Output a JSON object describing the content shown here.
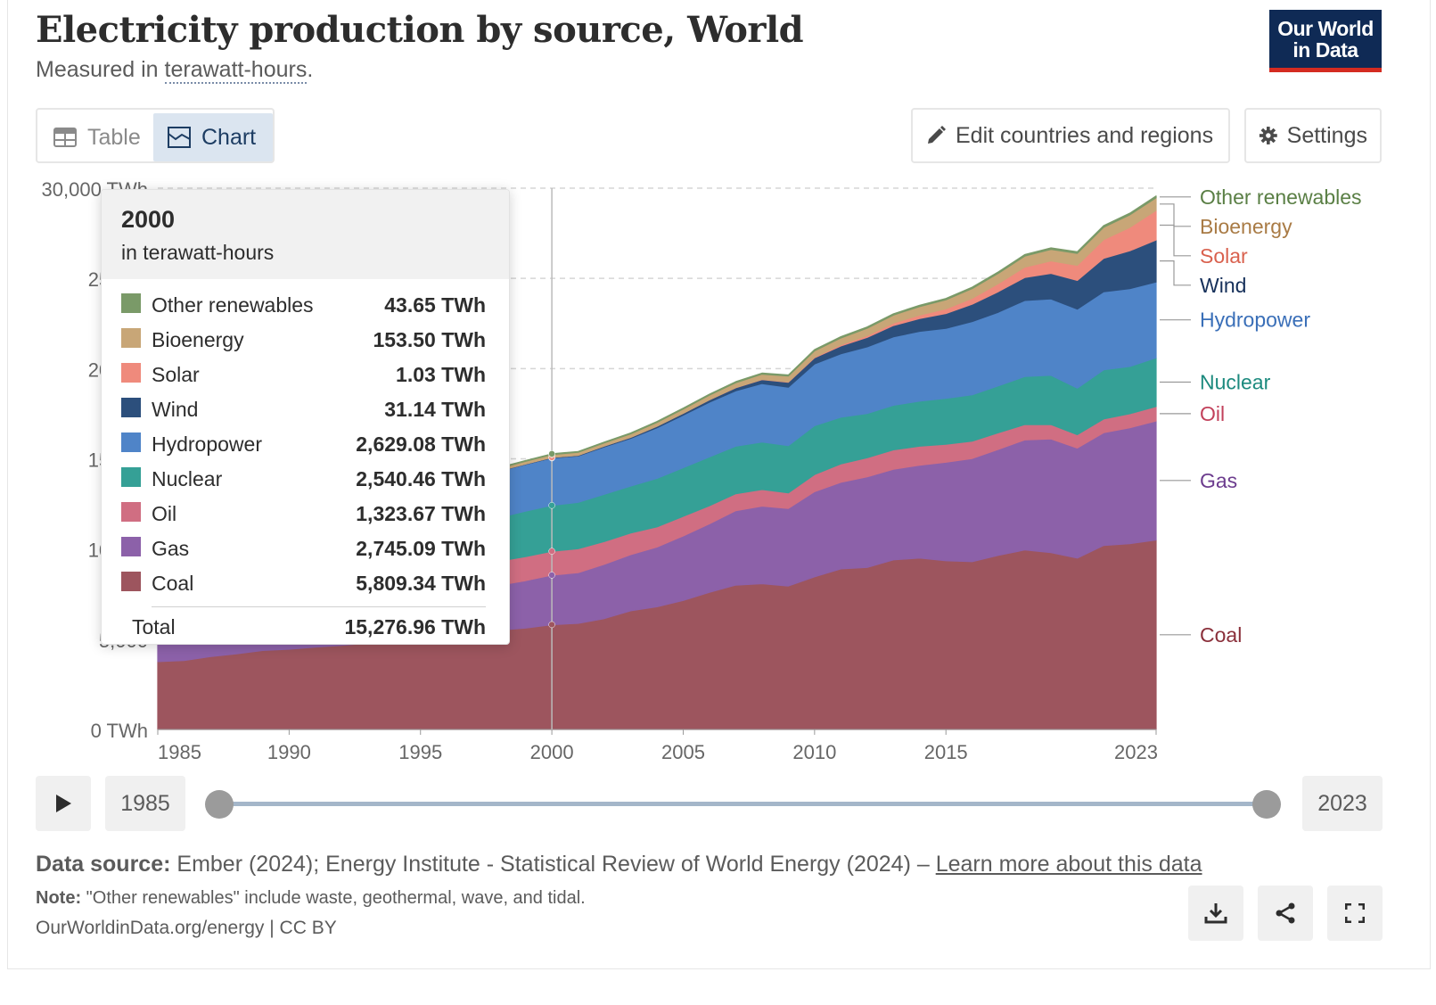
{
  "header": {
    "title": "Electricity production by source, World",
    "subtitle_prefix": "Measured in ",
    "subtitle_link": "terawatt-hours",
    "subtitle_suffix": ".",
    "logo_line1": "Our World",
    "logo_line2": "in Data"
  },
  "tabs": {
    "table": "Table",
    "chart": "Chart"
  },
  "controls": {
    "edit": "Edit countries and regions",
    "settings": "Settings"
  },
  "tooltip": {
    "year": "2000",
    "unit": "in terawatt-hours",
    "rows": [
      {
        "name": "Other renewables",
        "value": "43.65 TWh",
        "color": "#7a9a68"
      },
      {
        "name": "Bioenergy",
        "value": "153.50 TWh",
        "color": "#c8a677"
      },
      {
        "name": "Solar",
        "value": "1.03 TWh",
        "color": "#ef8a7c"
      },
      {
        "name": "Wind",
        "value": "31.14 TWh",
        "color": "#2c4f7c"
      },
      {
        "name": "Hydropower",
        "value": "2,629.08 TWh",
        "color": "#4f84c8"
      },
      {
        "name": "Nuclear",
        "value": "2,540.46 TWh",
        "color": "#35a096"
      },
      {
        "name": "Oil",
        "value": "1,323.67 TWh",
        "color": "#d06e82"
      },
      {
        "name": "Gas",
        "value": "2,745.09 TWh",
        "color": "#8c61a9"
      },
      {
        "name": "Coal",
        "value": "5,809.34 TWh",
        "color": "#9d555e"
      }
    ],
    "total_label": "Total",
    "total_value": "15,276.96 TWh"
  },
  "timeline": {
    "start": "1985",
    "end": "2023"
  },
  "footer": {
    "source_label": "Data source:",
    "source_text": " Ember (2024); Energy Institute - Statistical Review of World Energy (2024) – ",
    "source_link": "Learn more about this data",
    "note_label": "Note:",
    "note_text": " \"Other renewables\" include waste, geothermal, wave, and tidal.",
    "credit": "OurWorldinData.org/energy | CC BY"
  },
  "chart_data": {
    "type": "area",
    "stacked": true,
    "ylim": [
      0,
      30000
    ],
    "yticks": [
      "0 TWh",
      "5,000",
      "10,000",
      "15,000",
      "20,000",
      "25,000",
      "30,000 TWh"
    ],
    "ytick_values": [
      0,
      5000,
      10000,
      15000,
      20000,
      25000,
      30000
    ],
    "xticks": [
      1985,
      1990,
      1995,
      2000,
      2005,
      2010,
      2015,
      2023
    ],
    "grid": "horizontal dashed",
    "highlight_year": 2000,
    "x": [
      1985,
      1986,
      1987,
      1988,
      1989,
      1990,
      1991,
      1992,
      1993,
      1994,
      1995,
      1996,
      1997,
      1998,
      1999,
      2000,
      2001,
      2002,
      2003,
      2004,
      2005,
      2006,
      2007,
      2008,
      2009,
      2010,
      2011,
      2012,
      2013,
      2014,
      2015,
      2016,
      2017,
      2018,
      2019,
      2020,
      2021,
      2022,
      2023
    ],
    "series": [
      {
        "name": "Coal",
        "color": "#9d555e",
        "values": [
          3760,
          3820,
          4040,
          4190,
          4380,
          4450,
          4560,
          4660,
          4780,
          4880,
          5010,
          5200,
          5350,
          5500,
          5620,
          5809,
          5880,
          6150,
          6580,
          6800,
          7150,
          7600,
          8000,
          8080,
          7950,
          8460,
          8900,
          8980,
          9400,
          9500,
          9350,
          9300,
          9650,
          9950,
          9800,
          9500,
          10200,
          10300,
          10500
        ]
      },
      {
        "name": "Gas",
        "color": "#8c61a9",
        "values": [
          1420,
          1450,
          1550,
          1620,
          1740,
          1750,
          1800,
          1880,
          1930,
          2050,
          2150,
          2250,
          2380,
          2500,
          2630,
          2745,
          2810,
          3010,
          3110,
          3310,
          3580,
          3800,
          4130,
          4300,
          4300,
          4720,
          4800,
          5020,
          5020,
          5150,
          5460,
          5720,
          5880,
          6100,
          6300,
          6100,
          6250,
          6420,
          6600
        ]
      },
      {
        "name": "Oil",
        "color": "#d06e82",
        "values": [
          1400,
          1390,
          1350,
          1360,
          1370,
          1360,
          1330,
          1320,
          1300,
          1300,
          1290,
          1300,
          1310,
          1330,
          1330,
          1324,
          1330,
          1260,
          1200,
          1120,
          1080,
          1000,
          940,
          920,
          860,
          950,
          1020,
          1060,
          1080,
          1050,
          1000,
          960,
          920,
          850,
          800,
          740,
          760,
          780,
          800
        ]
      },
      {
        "name": "Nuclear",
        "color": "#35a096",
        "values": [
          1420,
          1570,
          1740,
          1880,
          1940,
          2000,
          2090,
          2110,
          2170,
          2220,
          2280,
          2380,
          2360,
          2420,
          2520,
          2540,
          2570,
          2620,
          2600,
          2690,
          2700,
          2710,
          2630,
          2630,
          2620,
          2710,
          2590,
          2450,
          2470,
          2500,
          2540,
          2570,
          2600,
          2660,
          2730,
          2580,
          2720,
          2620,
          2700
        ]
      },
      {
        "name": "Hydropower",
        "color": "#4f84c8",
        "values": [
          2000,
          2040,
          2090,
          2140,
          2120,
          2160,
          2210,
          2190,
          2300,
          2330,
          2460,
          2500,
          2560,
          2570,
          2590,
          2629,
          2570,
          2620,
          2640,
          2800,
          2910,
          3030,
          3070,
          3240,
          3240,
          3420,
          3510,
          3700,
          3790,
          3870,
          3880,
          4060,
          4080,
          4220,
          4230,
          4380,
          4330,
          4310,
          4200
        ]
      },
      {
        "name": "Wind",
        "color": "#2c4f7c",
        "values": [
          0,
          1,
          1,
          2,
          2,
          4,
          4,
          5,
          6,
          7,
          8,
          9,
          12,
          16,
          21,
          31,
          38,
          52,
          63,
          85,
          104,
          133,
          170,
          220,
          275,
          342,
          437,
          520,
          630,
          706,
          828,
          958,
          1140,
          1270,
          1420,
          1590,
          1850,
          2100,
          2330
        ]
      },
      {
        "name": "Solar",
        "color": "#ef8a7c",
        "values": [
          0,
          0,
          0,
          0,
          0,
          0,
          0,
          0,
          0,
          0,
          0,
          0,
          0,
          1,
          1,
          1,
          1,
          2,
          2,
          3,
          4,
          6,
          8,
          12,
          20,
          32,
          62,
          98,
          138,
          191,
          254,
          328,
          445,
          574,
          693,
          837,
          1040,
          1300,
          1640
        ]
      },
      {
        "name": "Bioenergy",
        "color": "#c8a677",
        "values": [
          70,
          75,
          80,
          85,
          90,
          100,
          105,
          110,
          115,
          120,
          125,
          130,
          135,
          140,
          148,
          154,
          160,
          170,
          185,
          210,
          230,
          250,
          270,
          290,
          320,
          350,
          380,
          410,
          440,
          470,
          500,
          540,
          570,
          610,
          630,
          660,
          680,
          690,
          700
        ]
      },
      {
        "name": "Other renewables",
        "color": "#7a9a68",
        "values": [
          28,
          29,
          30,
          31,
          32,
          35,
          36,
          37,
          38,
          39,
          40,
          41,
          42,
          43,
          43,
          44,
          45,
          47,
          48,
          50,
          52,
          55,
          57,
          59,
          61,
          63,
          65,
          68,
          70,
          73,
          75,
          77,
          80,
          82,
          85,
          88,
          90,
          92,
          94
        ]
      }
    ],
    "end_labels": [
      "Other renewables",
      "Bioenergy",
      "Solar",
      "Wind",
      "Hydropower",
      "Nuclear",
      "Oil",
      "Gas",
      "Coal"
    ]
  }
}
